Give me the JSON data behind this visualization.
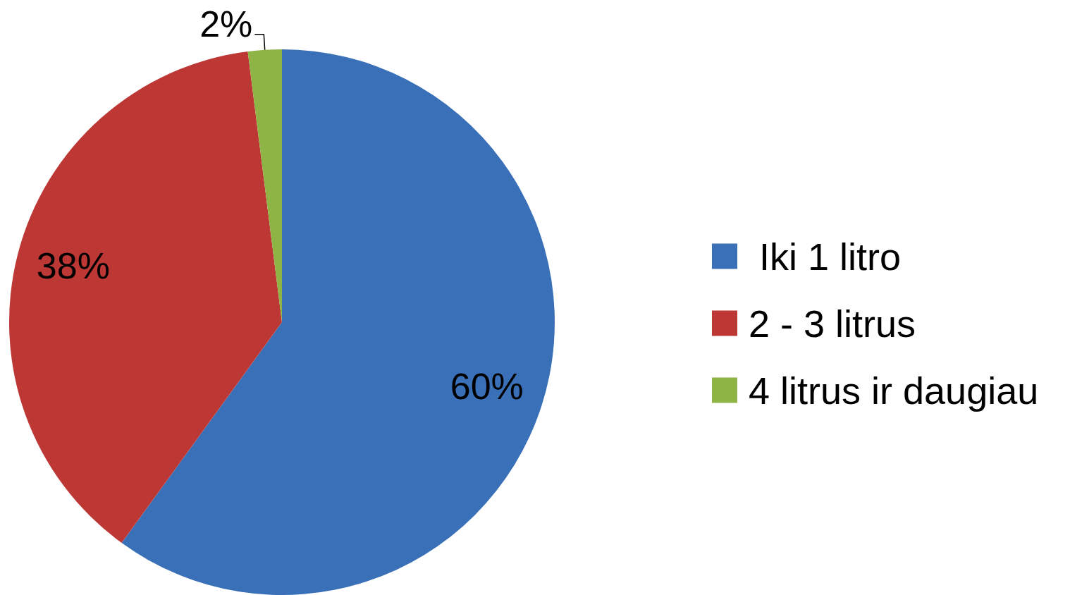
{
  "chart_data": {
    "type": "pie",
    "categories": [
      " Iki 1 litro",
      "2 - 3 litrus",
      "4 litrus ir daugiau"
    ],
    "values": [
      60,
      38,
      2
    ],
    "value_labels": [
      "60%",
      "38%",
      "2%"
    ],
    "colors": [
      "#3a70b8",
      "#bd3835",
      "#8fb446"
    ],
    "legend": "right"
  }
}
